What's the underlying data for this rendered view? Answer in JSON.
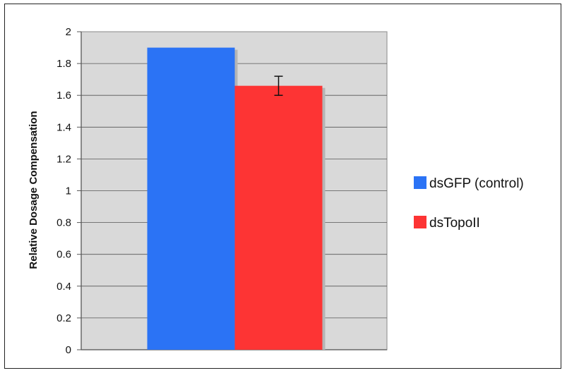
{
  "chart_data": {
    "type": "bar",
    "categories": [
      ""
    ],
    "series": [
      {
        "name": "dsGFP (control)",
        "values": [
          1.9
        ],
        "error": [
          0
        ],
        "color": "#2b73f5"
      },
      {
        "name": "dsTopoII",
        "values": [
          1.66
        ],
        "error": [
          0.06
        ],
        "color": "#fd3434"
      }
    ],
    "title": "",
    "xlabel": "",
    "ylabel": "Relative Dosage Compensation",
    "ylim": [
      0,
      2
    ],
    "yticks": [
      0,
      0.2,
      0.4,
      0.6,
      0.8,
      1,
      1.2,
      1.4,
      1.6,
      1.8,
      2
    ],
    "grid": true,
    "legend_position": "right",
    "plot_background": "#d9d9d9"
  }
}
